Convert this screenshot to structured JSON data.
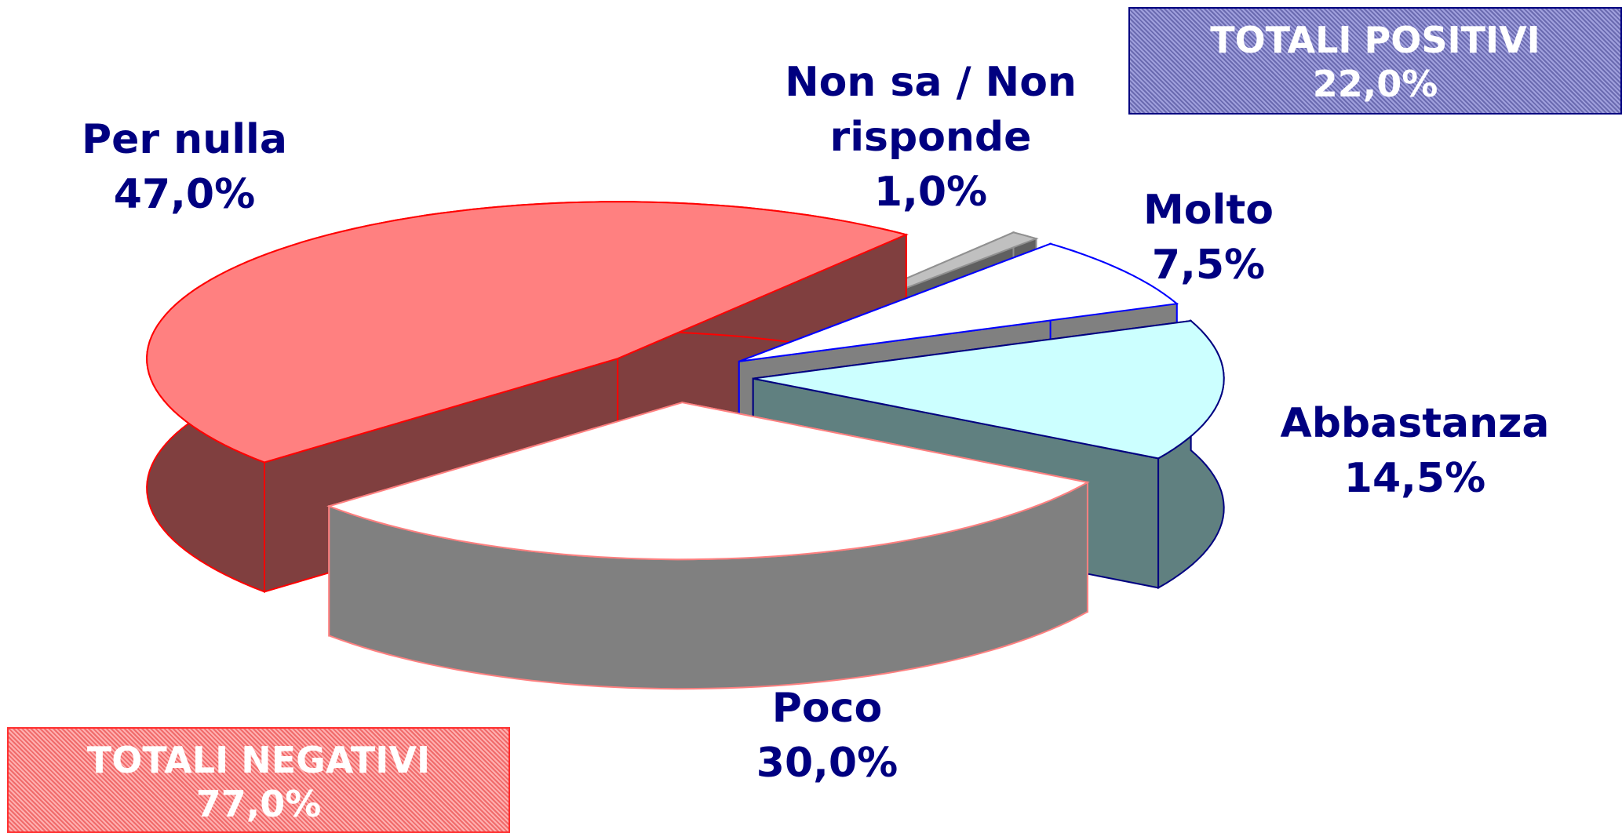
{
  "chart_data": {
    "type": "pie3d",
    "categories": [
      "Non sa / Non risponde",
      "Molto",
      "Abbastanza",
      "Poco",
      "Per nulla"
    ],
    "values": [
      1,
      7.5,
      14.5,
      30,
      47
    ],
    "value_labels": [
      "1,0%",
      "7,5%",
      "14,5%",
      "30,0%",
      "47,0%"
    ],
    "colors": [
      "#c0c0c0",
      "#ffffff",
      "#ccffff",
      "#ffffff",
      "#ff8080"
    ],
    "side_colors": [
      "#606060",
      "#808080",
      "#608080",
      "#808080",
      "#803f3f"
    ],
    "edge_colors": [
      "#909090",
      "#0000ff",
      "#000080",
      "#ff8080",
      "#ff0000"
    ],
    "annotations": [
      {
        "text": "TOTALI POSITIVI",
        "value_label": "22,0%"
      },
      {
        "text": "TOTALI NEGATIVI",
        "value_label": "77,0%"
      }
    ]
  }
}
